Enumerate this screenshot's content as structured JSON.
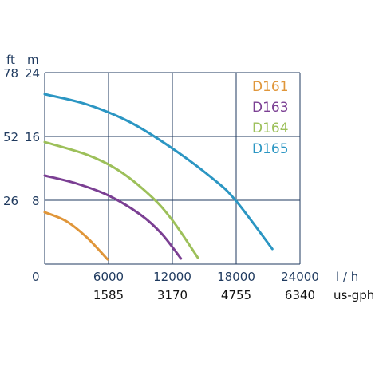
{
  "chart_data": {
    "type": "line",
    "title": "",
    "y_units": {
      "left": "ft",
      "right": "m"
    },
    "x_units": {
      "primary": "l / h",
      "secondary": "us-gph"
    },
    "xlim": [
      0,
      24000
    ],
    "ylim": [
      0,
      24
    ],
    "x_ticks": [
      "0",
      "6000",
      "12000",
      "18000",
      "24000"
    ],
    "x_ticks_secondary": [
      "1585",
      "3170",
      "4755",
      "6340"
    ],
    "y_ticks_m": [
      "8",
      "16",
      "24"
    ],
    "y_ticks_ft": [
      "26",
      "52",
      "78"
    ],
    "grid": true,
    "legend_position": "top-right",
    "series": [
      {
        "name": "D161",
        "color": "#e0963a",
        "points": [
          [
            0,
            6.5
          ],
          [
            2000,
            5.4
          ],
          [
            4000,
            3.3
          ],
          [
            5900,
            0.6
          ]
        ]
      },
      {
        "name": "D163",
        "color": "#7b3f93",
        "points": [
          [
            0,
            11.1
          ],
          [
            3000,
            10.1
          ],
          [
            6000,
            8.6
          ],
          [
            9000,
            6.2
          ],
          [
            11000,
            3.8
          ],
          [
            12800,
            0.7
          ]
        ]
      },
      {
        "name": "D164",
        "color": "#9dc05a",
        "points": [
          [
            0,
            15.3
          ],
          [
            4000,
            13.7
          ],
          [
            7000,
            11.7
          ],
          [
            10000,
            8.5
          ],
          [
            12000,
            5.5
          ],
          [
            14400,
            0.8
          ]
        ]
      },
      {
        "name": "D165",
        "color": "#2b96c3",
        "points": [
          [
            0,
            21.3
          ],
          [
            4000,
            20.0
          ],
          [
            8000,
            17.8
          ],
          [
            12000,
            14.5
          ],
          [
            16000,
            10.5
          ],
          [
            18000,
            7.9
          ],
          [
            21400,
            1.9
          ]
        ]
      }
    ]
  }
}
